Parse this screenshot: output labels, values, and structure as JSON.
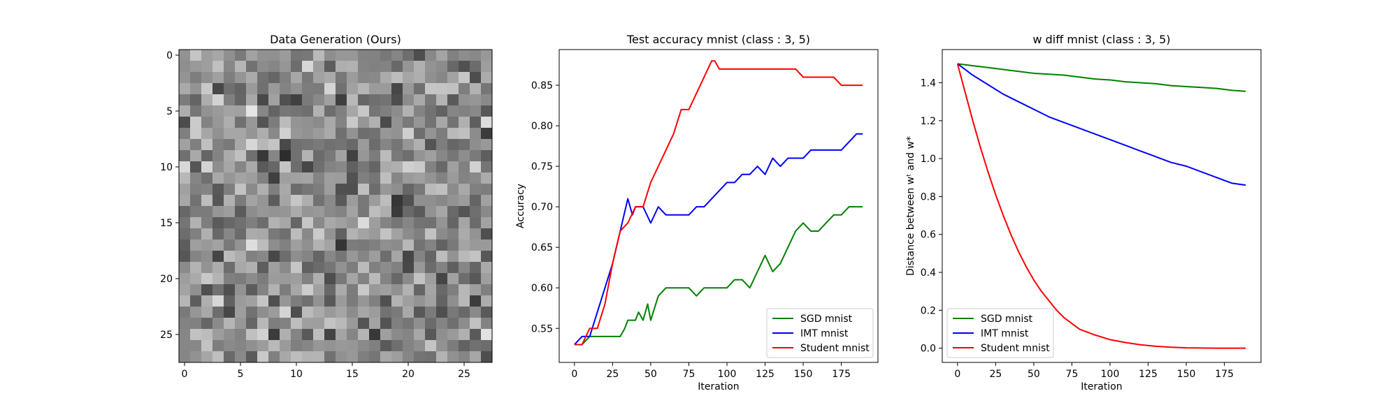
{
  "chart_data": [
    {
      "type": "heatmap",
      "title": "Data Generation (Ours)",
      "xlabel": "",
      "ylabel": "",
      "xticks": [
        "0",
        "5",
        "10",
        "15",
        "20",
        "25"
      ],
      "yticks": [
        "0",
        "5",
        "10",
        "15",
        "20",
        "25"
      ],
      "rows": 28,
      "cols": 28,
      "colormap": "gray",
      "grid": false
    },
    {
      "type": "line",
      "title": "Test accuracy mnist (class : 3, 5)",
      "xlabel": "Iteration",
      "ylabel": "Accuracy",
      "xlim": [
        -10,
        199
      ],
      "ylim": [
        0.508,
        0.894
      ],
      "xticks": [
        "0",
        "25",
        "50",
        "75",
        "100",
        "125",
        "150",
        "175"
      ],
      "yticks": [
        "0.55",
        "0.60",
        "0.65",
        "0.70",
        "0.75",
        "0.80",
        "0.85"
      ],
      "legend": "lower-right",
      "grid": false,
      "series": [
        {
          "name": "SGD mnist",
          "color": "#008000",
          "x": [
            0,
            5,
            10,
            15,
            20,
            25,
            30,
            33,
            35,
            40,
            42,
            45,
            48,
            50,
            55,
            60,
            65,
            70,
            75,
            80,
            85,
            90,
            95,
            100,
            105,
            110,
            115,
            120,
            125,
            130,
            135,
            140,
            145,
            150,
            155,
            160,
            165,
            170,
            175,
            180,
            185,
            189
          ],
          "y": [
            0.53,
            0.53,
            0.54,
            0.54,
            0.54,
            0.54,
            0.54,
            0.55,
            0.56,
            0.56,
            0.57,
            0.56,
            0.58,
            0.56,
            0.59,
            0.6,
            0.6,
            0.6,
            0.6,
            0.59,
            0.6,
            0.6,
            0.6,
            0.6,
            0.61,
            0.61,
            0.6,
            0.62,
            0.64,
            0.62,
            0.63,
            0.65,
            0.67,
            0.68,
            0.67,
            0.67,
            0.68,
            0.69,
            0.69,
            0.7,
            0.7,
            0.7
          ]
        },
        {
          "name": "IMT mnist",
          "color": "#0000ff",
          "x": [
            0,
            5,
            10,
            15,
            20,
            25,
            30,
            35,
            38,
            40,
            45,
            50,
            55,
            60,
            65,
            70,
            75,
            80,
            85,
            90,
            95,
            100,
            105,
            110,
            115,
            120,
            125,
            130,
            135,
            140,
            145,
            150,
            155,
            160,
            165,
            170,
            175,
            180,
            185,
            189
          ],
          "y": [
            0.53,
            0.54,
            0.54,
            0.57,
            0.6,
            0.63,
            0.67,
            0.71,
            0.69,
            0.7,
            0.7,
            0.68,
            0.7,
            0.69,
            0.69,
            0.69,
            0.69,
            0.7,
            0.7,
            0.71,
            0.72,
            0.73,
            0.73,
            0.74,
            0.74,
            0.75,
            0.74,
            0.76,
            0.75,
            0.76,
            0.76,
            0.76,
            0.77,
            0.77,
            0.77,
            0.77,
            0.77,
            0.78,
            0.79,
            0.79
          ]
        },
        {
          "name": "Student mnist",
          "color": "#ff0000",
          "x": [
            0,
            5,
            10,
            15,
            20,
            25,
            30,
            35,
            40,
            45,
            50,
            55,
            60,
            65,
            70,
            75,
            80,
            85,
            90,
            92,
            95,
            100,
            105,
            110,
            115,
            120,
            125,
            130,
            135,
            140,
            145,
            150,
            155,
            160,
            165,
            170,
            175,
            180,
            185,
            189
          ],
          "y": [
            0.53,
            0.53,
            0.55,
            0.55,
            0.58,
            0.63,
            0.67,
            0.68,
            0.7,
            0.7,
            0.73,
            0.75,
            0.77,
            0.79,
            0.82,
            0.82,
            0.84,
            0.86,
            0.88,
            0.88,
            0.87,
            0.87,
            0.87,
            0.87,
            0.87,
            0.87,
            0.87,
            0.87,
            0.87,
            0.87,
            0.87,
            0.86,
            0.86,
            0.86,
            0.86,
            0.86,
            0.85,
            0.85,
            0.85,
            0.85
          ]
        }
      ]
    },
    {
      "type": "line",
      "title": "w diff mnist (class : 3, 5)",
      "xlabel": "Iteration",
      "ylabel": "Distance between wᵗ and w*",
      "xlim": [
        -10,
        199
      ],
      "ylim": [
        -0.075,
        1.575
      ],
      "xticks": [
        "0",
        "25",
        "50",
        "75",
        "100",
        "125",
        "150",
        "175"
      ],
      "yticks": [
        "0.0",
        "0.2",
        "0.4",
        "0.6",
        "0.8",
        "1.0",
        "1.2",
        "1.4"
      ],
      "legend": "lower-left",
      "grid": false,
      "series": [
        {
          "name": "SGD mnist",
          "color": "#008000",
          "x": [
            0,
            10,
            20,
            30,
            40,
            50,
            60,
            70,
            80,
            90,
            100,
            110,
            120,
            130,
            140,
            150,
            160,
            170,
            180,
            189
          ],
          "y": [
            1.5,
            1.49,
            1.48,
            1.47,
            1.46,
            1.45,
            1.445,
            1.44,
            1.43,
            1.42,
            1.415,
            1.405,
            1.4,
            1.395,
            1.385,
            1.38,
            1.375,
            1.37,
            1.36,
            1.355
          ]
        },
        {
          "name": "IMT mnist",
          "color": "#0000ff",
          "x": [
            0,
            10,
            20,
            30,
            40,
            50,
            60,
            70,
            80,
            90,
            100,
            110,
            120,
            130,
            140,
            150,
            160,
            170,
            180,
            189
          ],
          "y": [
            1.5,
            1.44,
            1.39,
            1.34,
            1.3,
            1.26,
            1.22,
            1.19,
            1.16,
            1.13,
            1.1,
            1.07,
            1.04,
            1.01,
            0.98,
            0.96,
            0.93,
            0.9,
            0.87,
            0.86
          ]
        },
        {
          "name": "Student mnist",
          "color": "#ff0000",
          "x": [
            0,
            5,
            10,
            15,
            20,
            25,
            30,
            35,
            40,
            45,
            50,
            55,
            60,
            65,
            70,
            75,
            80,
            90,
            100,
            110,
            120,
            130,
            140,
            150,
            160,
            170,
            180,
            189
          ],
          "y": [
            1.5,
            1.35,
            1.2,
            1.06,
            0.93,
            0.81,
            0.7,
            0.6,
            0.51,
            0.43,
            0.36,
            0.3,
            0.25,
            0.2,
            0.16,
            0.13,
            0.1,
            0.07,
            0.045,
            0.03,
            0.018,
            0.01,
            0.005,
            0.002,
            0.001,
            0.0,
            0.0,
            0.0
          ]
        }
      ]
    }
  ]
}
